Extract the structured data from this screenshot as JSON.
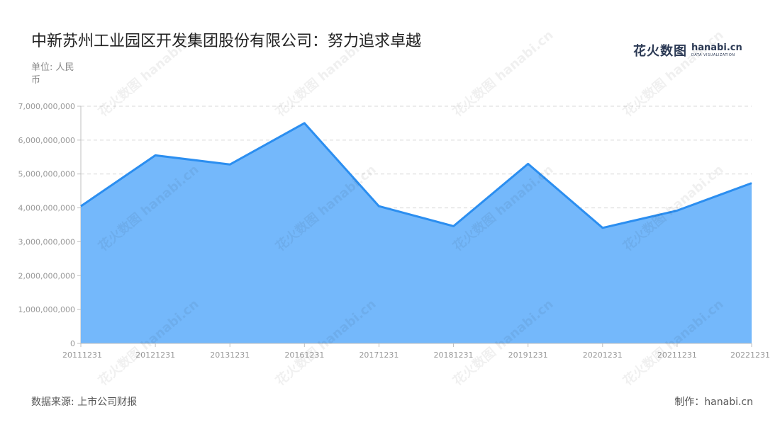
{
  "title": "中新苏州工业园区开发集团股份有限公司：努力追求卓越",
  "unit_label": "单位: 人民币",
  "logo": {
    "cn_text": "花火数图",
    "en_text": "hanabi.cn",
    "en_sub": "DATA VISUALIZATION"
  },
  "source": "数据来源: 上市公司财报",
  "credit": "制作：hanabi.cn",
  "colors": {
    "line": "#2b8ef0",
    "fill": "#74b8fb",
    "grid": "#d9d9d9",
    "axis": "#bfbfbf"
  },
  "chart_data": {
    "type": "area",
    "title": "中新苏州工业园区开发集团股份有限公司：努力追求卓越",
    "ylabel": "单位: 人民币",
    "xlabel": "",
    "categories": [
      "20111231",
      "20121231",
      "20131231",
      "20161231",
      "20171231",
      "20181231",
      "20191231",
      "20201231",
      "20211231",
      "20221231"
    ],
    "values": [
      4050000000,
      5550000000,
      5280000000,
      6500000000,
      4050000000,
      3460000000,
      5300000000,
      3410000000,
      3920000000,
      4730000000
    ],
    "ylim": [
      0,
      7000000000
    ],
    "yticks": [
      "0",
      "1,000,000,000",
      "2,000,000,000",
      "3,000,000,000",
      "4,000,000,000",
      "5,000,000,000",
      "6,000,000,000",
      "7,000,000,000"
    ],
    "grid": true,
    "legend": "none"
  }
}
